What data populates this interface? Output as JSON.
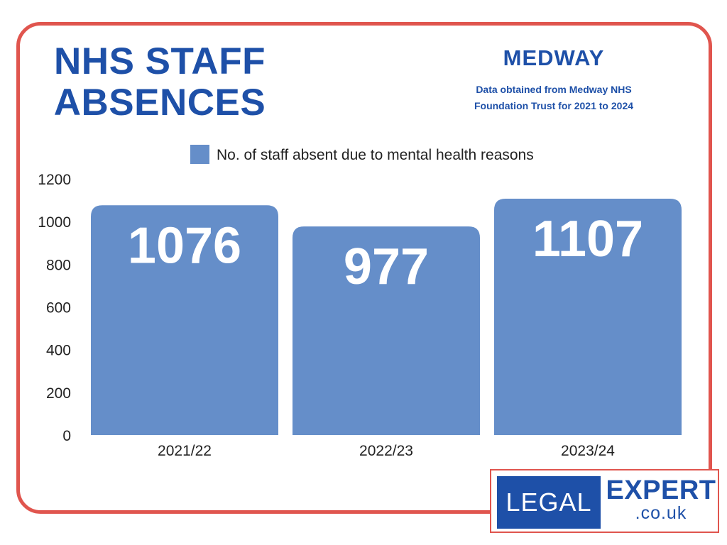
{
  "header": {
    "title_line1": "NHS STAFF",
    "title_line2": "ABSENCES",
    "region": "MEDWAY",
    "source_line1": "Data obtained from Medway NHS",
    "source_line2": "Foundation Trust for 2021 to 2024"
  },
  "chart_data": {
    "type": "bar",
    "title": "NHS STAFF ABSENCES",
    "categories": [
      "2021/22",
      "2022/23",
      "2023/24"
    ],
    "series": [
      {
        "name": "No. of staff absent due to mental health reasons",
        "values": [
          1076,
          977,
          1107
        ]
      }
    ],
    "data_labels": [
      "1076",
      "977",
      "1107"
    ],
    "yticks": [
      0,
      200,
      400,
      600,
      800,
      1000,
      1200
    ],
    "ylim": [
      0,
      1200
    ],
    "xlabel": "",
    "ylabel": "",
    "grid": false,
    "legend_position": "top",
    "colors": {
      "bar": "#658ec9",
      "label": "#ffffff",
      "text": "#222222"
    }
  },
  "logo": {
    "left": "LEGAL",
    "right": "EXPERT",
    "domain": ".co.uk",
    "colors": {
      "brand": "#1e50a8",
      "border": "#e0554e"
    }
  }
}
